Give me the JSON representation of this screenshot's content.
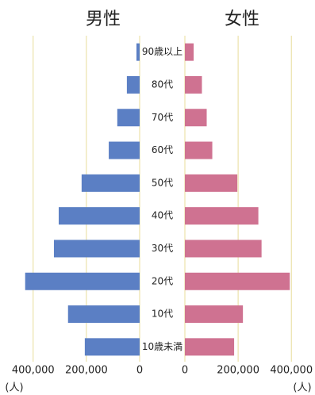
{
  "chart_data": {
    "type": "pyramid",
    "categories": [
      "90歳以上",
      "80代",
      "70代",
      "60代",
      "50代",
      "40代",
      "30代",
      "20代",
      "10代",
      "10歳未満"
    ],
    "series": [
      {
        "name": "男性",
        "color": "#5b7fc4",
        "values": [
          12000,
          48000,
          84000,
          116000,
          218000,
          304000,
          322000,
          430000,
          269000,
          206000
        ]
      },
      {
        "name": "女性",
        "color": "#cf7291",
        "values": [
          33000,
          64000,
          82000,
          103000,
          197000,
          276000,
          288000,
          394000,
          218000,
          185000
        ]
      }
    ],
    "xlim": [
      0,
      450000
    ],
    "xticks": [
      {
        "value": 0,
        "label": "0"
      },
      {
        "value": 200000,
        "label": "200,000"
      },
      {
        "value": 400000,
        "label": "400,000"
      }
    ],
    "x_label": "(人)",
    "grid": true,
    "grid_color": "#e8dc9a"
  }
}
